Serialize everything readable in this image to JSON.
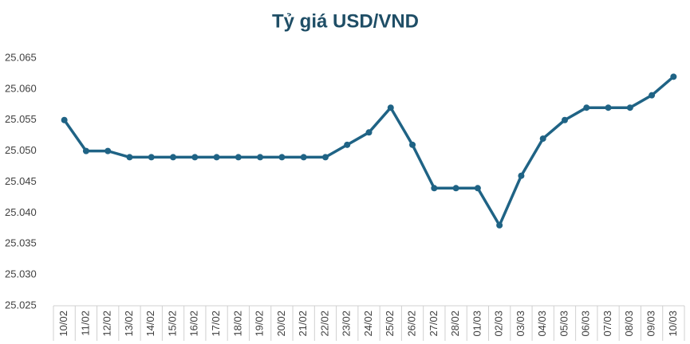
{
  "chart_data": {
    "type": "line",
    "title": "Tỷ giá USD/VND",
    "categories": [
      "10/02",
      "11/02",
      "12/02",
      "13/02",
      "14/02",
      "15/02",
      "16/02",
      "17/02",
      "18/02",
      "19/02",
      "20/02",
      "21/02",
      "22/02",
      "23/02",
      "24/02",
      "25/02",
      "26/02",
      "27/02",
      "28/02",
      "01/03",
      "02/03",
      "03/03",
      "04/03",
      "05/03",
      "06/03",
      "07/03",
      "08/03",
      "09/03",
      "10/03"
    ],
    "values": [
      25055,
      25050,
      25050,
      25049,
      25049,
      25049,
      25049,
      25049,
      25049,
      25049,
      25049,
      25049,
      25049,
      25051,
      25053,
      25057,
      25051,
      25044,
      25044,
      25044,
      25038,
      25046,
      25052,
      25055,
      25057,
      25057,
      25057,
      25059,
      25062
    ],
    "color": "#1f6385",
    "ylim": [
      25025,
      25065
    ],
    "yticks": [
      {
        "value": 25025,
        "label": "25.025"
      },
      {
        "value": 25030,
        "label": "25.030"
      },
      {
        "value": 25035,
        "label": "25.035"
      },
      {
        "value": 25040,
        "label": "25.040"
      },
      {
        "value": 25045,
        "label": "25.045"
      },
      {
        "value": 25050,
        "label": "25.050"
      },
      {
        "value": 25055,
        "label": "25.055"
      },
      {
        "value": 25060,
        "label": "25.060"
      },
      {
        "value": 25065,
        "label": "25.065"
      }
    ],
    "grid": false
  }
}
